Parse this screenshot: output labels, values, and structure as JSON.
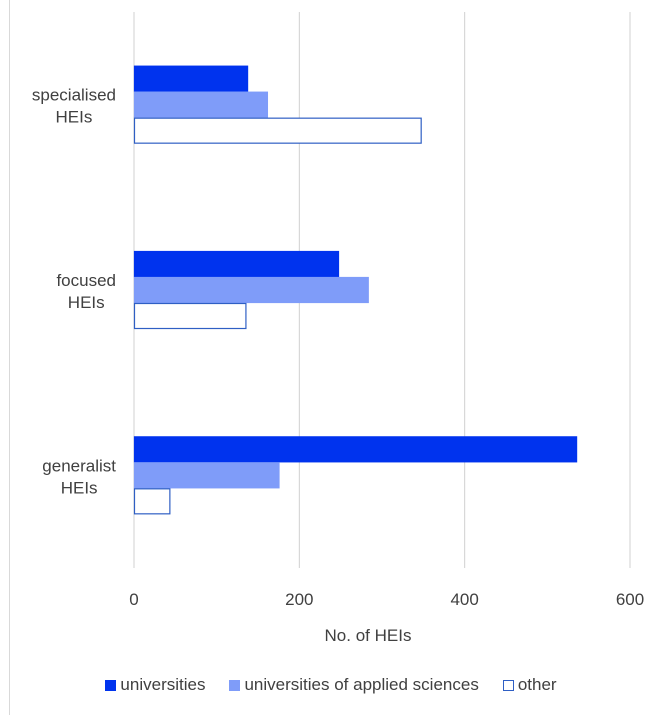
{
  "chart_data": {
    "type": "bar",
    "orientation": "horizontal",
    "categories": [
      {
        "line1": "specialised",
        "line2": "HEIs"
      },
      {
        "line1": "focused",
        "line2": "HEIs"
      },
      {
        "line1": "generalist",
        "line2": "HEIs"
      }
    ],
    "series": [
      {
        "name": "universities",
        "values": [
          138,
          248,
          536
        ],
        "fill": "#0033ee",
        "stroke": "#0033ee"
      },
      {
        "name": "universities of applied sciences",
        "values": [
          162,
          284,
          176
        ],
        "fill": "#7f9cf9",
        "stroke": "#7f9cf9"
      },
      {
        "name": "other",
        "values": [
          348,
          136,
          44
        ],
        "fill": "#ffffff",
        "stroke": "#2f5fc4"
      }
    ],
    "xlabel": "No. of HEIs",
    "xlim": [
      0,
      600
    ],
    "xticks": [
      "0",
      "200",
      "400",
      "600"
    ],
    "grid": "vertical",
    "legend_position": "bottom"
  }
}
